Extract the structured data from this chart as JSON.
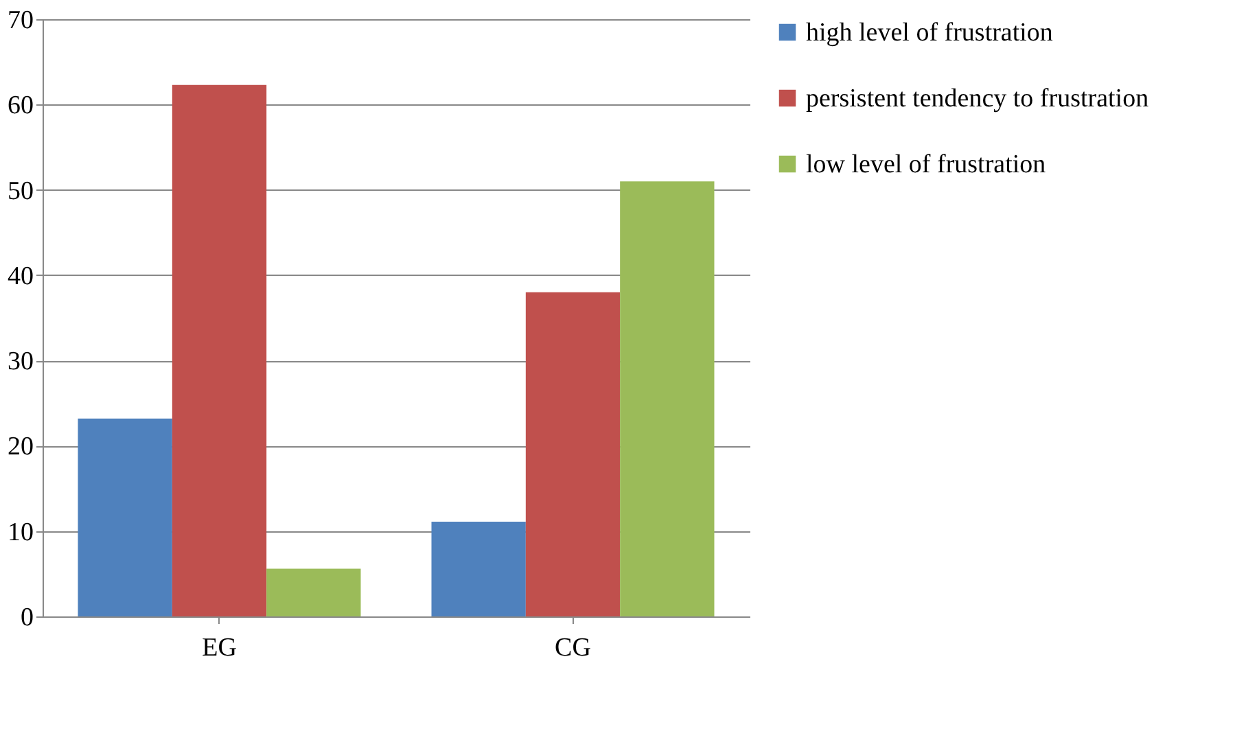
{
  "chart_data": {
    "type": "bar",
    "categories": [
      "EG",
      "CG"
    ],
    "series": [
      {
        "name": "high level of frustration",
        "color": "#4f81bd",
        "values": [
          23.2,
          11.1
        ]
      },
      {
        "name": "persistent tendency to frustration",
        "color": "#c0504d",
        "values": [
          62.3,
          38
        ]
      },
      {
        "name": "low level of frustration",
        "color": "#9bbb59",
        "values": [
          5.6,
          51
        ]
      }
    ],
    "ylim": [
      0,
      70
    ],
    "yticks": [
      0,
      10,
      20,
      30,
      40,
      50,
      60,
      70
    ],
    "grid": "y",
    "legend": "right"
  }
}
